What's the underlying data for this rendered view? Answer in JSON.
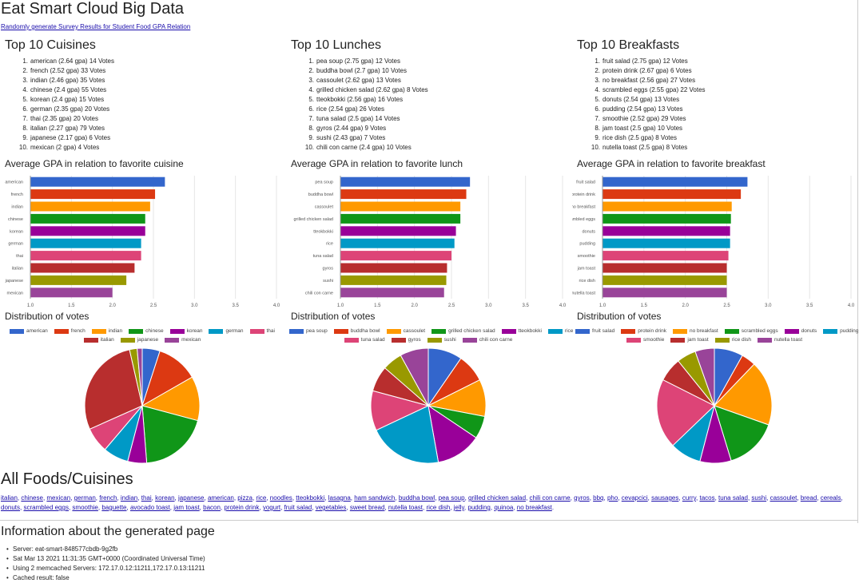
{
  "page": {
    "title": "Eat Smart Cloud Big Data",
    "generate_link": "Randomly generate Survey Results for Student Food GPA Relation"
  },
  "sections": [
    {
      "list_title": "Top 10 Cuisines",
      "bar_title": "Average GPA in relation to favorite cuisine",
      "pie_title": "Distribution of votes",
      "top": [
        {
          "num": "1.",
          "text": "american (2.64 gpa) 14 Votes"
        },
        {
          "num": "2.",
          "text": "french (2.52 gpa) 33 Votes"
        },
        {
          "num": "3.",
          "text": "indian (2.46 gpa) 35 Votes"
        },
        {
          "num": "4.",
          "text": "chinese (2.4 gpa) 55 Votes"
        },
        {
          "num": "5.",
          "text": "korean (2.4 gpa) 15 Votes"
        },
        {
          "num": "6.",
          "text": "german (2.35 gpa) 20 Votes"
        },
        {
          "num": "7.",
          "text": "thai (2.35 gpa) 20 Votes"
        },
        {
          "num": "8.",
          "text": "italian (2.27 gpa) 79 Votes"
        },
        {
          "num": "9.",
          "text": "japanese (2.17 gpa) 6 Votes"
        },
        {
          "num": "10.",
          "text": "mexican (2 gpa) 4 Votes"
        }
      ]
    },
    {
      "list_title": "Top 10 Lunches",
      "bar_title": "Average GPA in relation to favorite lunch",
      "pie_title": "Distribution of votes",
      "top": [
        {
          "num": "1.",
          "text": "pea soup (2.75 gpa) 12 Votes"
        },
        {
          "num": "2.",
          "text": "buddha bowl (2.7 gpa) 10 Votes"
        },
        {
          "num": "3.",
          "text": "cassoulet (2.62 gpa) 13 Votes"
        },
        {
          "num": "4.",
          "text": "grilled chicken salad (2.62 gpa) 8 Votes"
        },
        {
          "num": "5.",
          "text": "tteokbokki (2.56 gpa) 16 Votes"
        },
        {
          "num": "6.",
          "text": "rice (2.54 gpa) 26 Votes"
        },
        {
          "num": "7.",
          "text": "tuna salad (2.5 gpa) 14 Votes"
        },
        {
          "num": "8.",
          "text": "gyros (2.44 gpa) 9 Votes"
        },
        {
          "num": "9.",
          "text": "sushi (2.43 gpa) 7 Votes"
        },
        {
          "num": "10.",
          "text": "chili con carne (2.4 gpa) 10 Votes"
        }
      ]
    },
    {
      "list_title": "Top 10 Breakfasts",
      "bar_title": "Average GPA in relation to favorite breakfast",
      "pie_title": "Distribution of votes",
      "top": [
        {
          "num": "1.",
          "text": "fruit salad (2.75 gpa) 12 Votes"
        },
        {
          "num": "2.",
          "text": "protein drink (2.67 gpa) 6 Votes"
        },
        {
          "num": "3.",
          "text": "no breakfast (2.56 gpa) 27 Votes"
        },
        {
          "num": "4.",
          "text": "scrambled eggs (2.55 gpa) 22 Votes"
        },
        {
          "num": "5.",
          "text": "donuts (2.54 gpa) 13 Votes"
        },
        {
          "num": "6.",
          "text": "pudding (2.54 gpa) 13 Votes"
        },
        {
          "num": "7.",
          "text": "smoothie (2.52 gpa) 29 Votes"
        },
        {
          "num": "8.",
          "text": "jam toast (2.5 gpa) 10 Votes"
        },
        {
          "num": "9.",
          "text": "rice dish (2.5 gpa) 8 Votes"
        },
        {
          "num": "10.",
          "text": "nutella toast (2.5 gpa) 8 Votes"
        }
      ]
    }
  ],
  "chart_data": [
    {
      "type": "bar",
      "orientation": "horizontal",
      "title": "Average GPA in relation to favorite cuisine",
      "categories": [
        "american",
        "french",
        "indian",
        "chinese",
        "korean",
        "german",
        "thai",
        "italian",
        "japanese",
        "mexican"
      ],
      "values": [
        2.64,
        2.52,
        2.46,
        2.4,
        2.4,
        2.35,
        2.35,
        2.27,
        2.17,
        2.0
      ],
      "xlim": [
        1.0,
        4.0
      ],
      "ticks": [
        "1.0",
        "1.5",
        "2.0",
        "2.5",
        "3.0",
        "3.5",
        "4.0"
      ],
      "grid": true
    },
    {
      "type": "bar",
      "orientation": "horizontal",
      "title": "Average GPA in relation to favorite lunch",
      "categories": [
        "pea soup",
        "buddha bowl",
        "cassoulet",
        "grilled chicken salad",
        "tteokbokki",
        "rice",
        "tuna salad",
        "gyros",
        "sushi",
        "chili con carne"
      ],
      "values": [
        2.75,
        2.7,
        2.62,
        2.62,
        2.56,
        2.54,
        2.5,
        2.44,
        2.43,
        2.4
      ],
      "xlim": [
        1.0,
        4.0
      ],
      "ticks": [
        "1.0",
        "1.5",
        "2.0",
        "2.5",
        "3.0",
        "3.5",
        "4.0"
      ],
      "grid": true
    },
    {
      "type": "bar",
      "orientation": "horizontal",
      "title": "Average GPA in relation to favorite breakfast",
      "categories": [
        "fruit salad",
        "protein drink",
        "no breakfast",
        "scrambled eggs",
        "donuts",
        "pudding",
        "smoothie",
        "jam toast",
        "rice dish",
        "nutella toast"
      ],
      "values": [
        2.75,
        2.67,
        2.56,
        2.55,
        2.54,
        2.54,
        2.52,
        2.5,
        2.5,
        2.5
      ],
      "xlim": [
        1.0,
        4.0
      ],
      "ticks": [
        "1.0",
        "1.5",
        "2.0",
        "2.5",
        "3.0",
        "3.5",
        "4.0"
      ],
      "grid": true
    },
    {
      "type": "pie",
      "title": "Distribution of votes",
      "legend": "top",
      "categories": [
        "american",
        "french",
        "indian",
        "chinese",
        "korean",
        "german",
        "thai",
        "italian",
        "japanese",
        "mexican"
      ],
      "values": [
        14,
        33,
        35,
        55,
        15,
        20,
        20,
        79,
        6,
        4
      ]
    },
    {
      "type": "pie",
      "title": "Distribution of votes",
      "legend": "top",
      "categories": [
        "pea soup",
        "buddha bowl",
        "cassoulet",
        "grilled chicken salad",
        "tteokbokki",
        "rice",
        "tuna salad",
        "gyros",
        "sushi",
        "chili con carne"
      ],
      "values": [
        12,
        10,
        13,
        8,
        16,
        26,
        14,
        9,
        7,
        10
      ]
    },
    {
      "type": "pie",
      "title": "Distribution of votes",
      "legend": "top",
      "categories": [
        "fruit salad",
        "protein drink",
        "no breakfast",
        "scrambled eggs",
        "donuts",
        "pudding",
        "smoothie",
        "jam toast",
        "rice dish",
        "nutella toast"
      ],
      "values": [
        12,
        6,
        27,
        22,
        13,
        13,
        29,
        10,
        8,
        8
      ]
    }
  ],
  "colors": [
    "#3366cc",
    "#dc3912",
    "#ff9900",
    "#109618",
    "#990099",
    "#0099c6",
    "#dd4477",
    "#b82e2e",
    "#999900",
    "#994499"
  ],
  "all_foods": {
    "title": "All Foods/Cuisines",
    "items": [
      "italian",
      "chinese",
      "mexican",
      "german",
      "french",
      "indian",
      "thai",
      "korean",
      "japanese",
      "american",
      "pizza",
      "rice",
      "noodles",
      "tteokbokki",
      "lasagna",
      "ham sandwich",
      "buddha bowl",
      "pea soup",
      "grilled chicken salad",
      "chili con carne",
      "gyros",
      "bbq",
      "pho",
      "cevapcici",
      "sausages",
      "curry",
      "tacos",
      "tuna salad",
      "sushi",
      "cassoulet",
      "bread",
      "cereals",
      "donuts",
      "scrambled eggs",
      "smoothie",
      "baguette",
      "avocado toast",
      "jam toast",
      "bacon",
      "protein drink",
      "yogurt",
      "fruit salad",
      "vegetables",
      "sweet bread",
      "nutella toast",
      "rice dish",
      "jelly",
      "pudding",
      "quinoa",
      "no breakfast"
    ]
  },
  "info": {
    "title": "Information about the generated page",
    "items": [
      "Server: eat-smart-848577cbdb-9g2fb",
      "Sat Mar 13 2021 11:31:35 GMT+0000 (Coordinated Universal Time)",
      "Using 2 memcached Servers: 172.17.0.12:11211,172.17.0.13:11211",
      "Cached result: false"
    ]
  }
}
